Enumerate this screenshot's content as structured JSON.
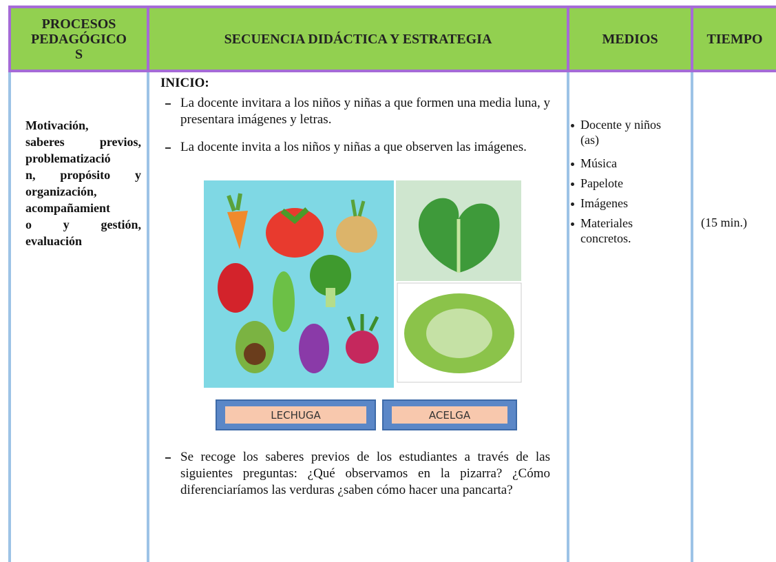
{
  "header": {
    "procesos_lines": [
      "PROCESOS",
      "PEDAGÓGICO",
      "S"
    ],
    "secuencia": "SECUENCIA DIDÁCTICA Y ESTRATEGIA",
    "medios": "MEDIOS",
    "tiempo": "TIEMPO"
  },
  "row": {
    "procesos_lines": [
      "Motivación,",
      "saberes previos,",
      "problematizació",
      "n, propósito y",
      "organización,",
      "acompañamient",
      "o y gestión,",
      "evaluación"
    ],
    "secuencia": {
      "heading": "INICIO:",
      "items": [
        "La docente invitara a los niños y niñas a que formen una media luna, y presentara imágenes y letras.",
        "La docente invita a los niños y niñas a que observen las imágenes."
      ],
      "image_labels": [
        "LECHUGA",
        "ACELGA"
      ],
      "closing_item": "Se recoge los saberes previos de los estudiantes a través de las siguientes preguntas: ¿Qué observamos en la pizarra? ¿Cómo diferenciaríamos las verduras ¿saben cómo hacer una pancarta?"
    },
    "medios": [
      "Docente y niños (as)",
      "Música",
      "Papelote",
      "Imágenes",
      "Materiales concretos."
    ],
    "tiempo": "(15 min.)"
  }
}
